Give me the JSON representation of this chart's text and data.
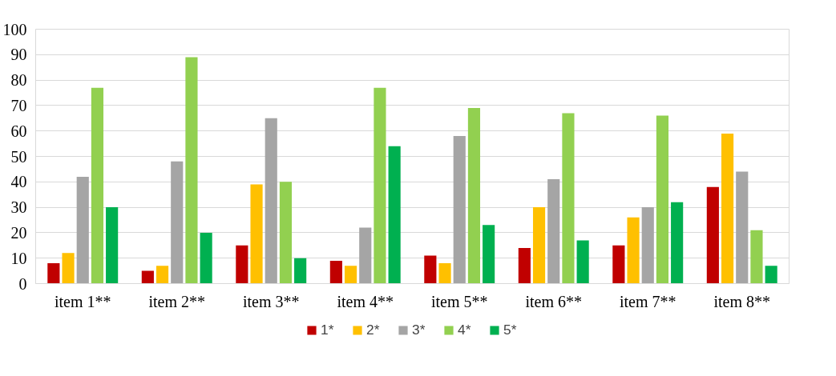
{
  "chart_data": {
    "type": "bar",
    "categories": [
      "item 1**",
      "item 2**",
      "item 3**",
      "item 4**",
      "item 5**",
      "item 6**",
      "item 7**",
      "item 8**"
    ],
    "series": [
      {
        "name": "1*",
        "color": "#c00000",
        "values": [
          8,
          5,
          15,
          9,
          11,
          14,
          15,
          38
        ]
      },
      {
        "name": "2*",
        "color": "#ffc000",
        "values": [
          12,
          7,
          39,
          7,
          8,
          30,
          26,
          59
        ]
      },
      {
        "name": "3*",
        "color": "#a5a5a5",
        "values": [
          42,
          48,
          65,
          22,
          58,
          41,
          30,
          44
        ]
      },
      {
        "name": "4*",
        "color": "#92d050",
        "values": [
          77,
          89,
          40,
          77,
          69,
          67,
          66,
          21
        ]
      },
      {
        "name": "5*",
        "color": "#00b050",
        "values": [
          30,
          20,
          10,
          54,
          23,
          17,
          32,
          7
        ]
      }
    ],
    "ylim": [
      0,
      100
    ],
    "yticks": [
      0,
      10,
      20,
      30,
      40,
      50,
      60,
      70,
      80,
      90,
      100
    ],
    "grid": "y",
    "legend": "bottom"
  }
}
